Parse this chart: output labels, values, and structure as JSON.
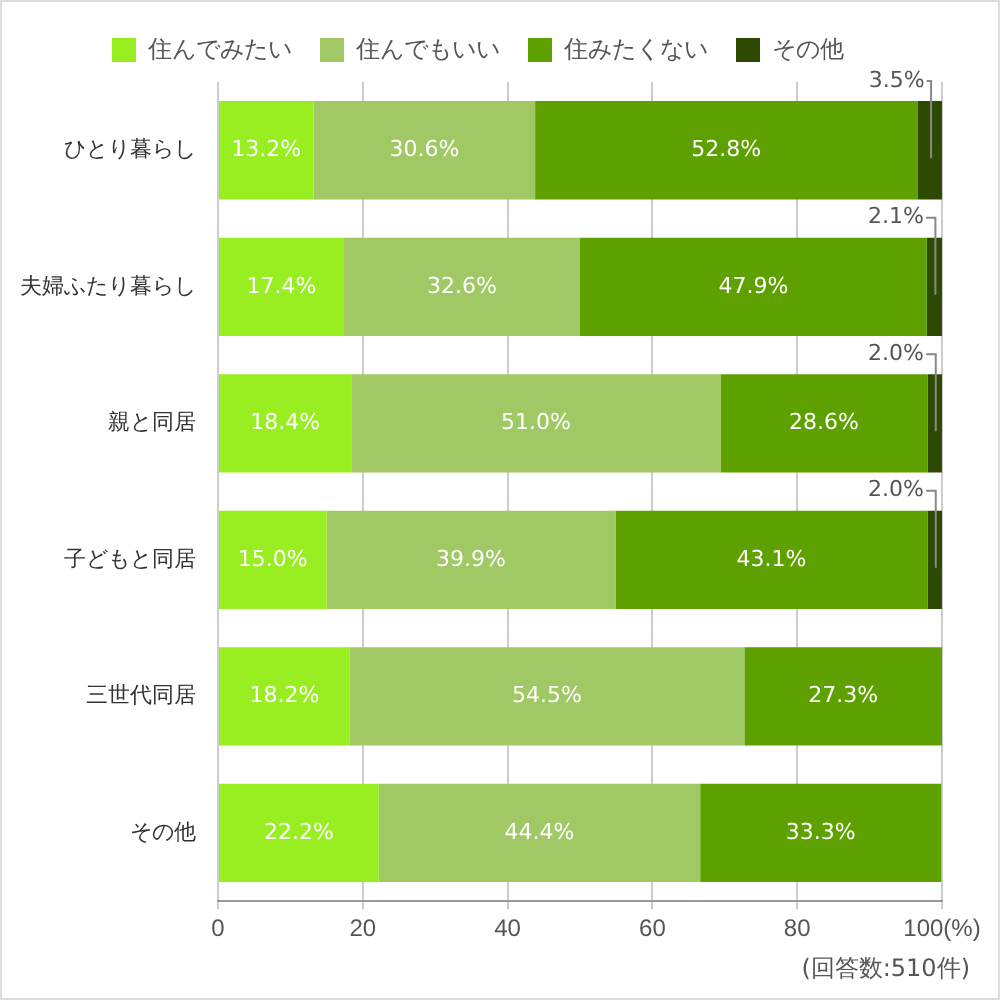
{
  "chart_data": {
    "type": "bar",
    "orientation": "horizontal",
    "stacked": true,
    "categories": [
      "ひとり暮らし",
      "夫婦ふたり暮らし",
      "親と同居",
      "子どもと同居",
      "三世代同居",
      "その他"
    ],
    "series": [
      {
        "name": "住んでみたい",
        "color": "#99ee22",
        "values": [
          13.2,
          17.4,
          18.4,
          15.0,
          18.2,
          22.2
        ],
        "value_labels": [
          "13.2%",
          "17.4%",
          "18.4%",
          "15.0%",
          "18.2%",
          "22.2%"
        ]
      },
      {
        "name": "住んでもいい",
        "color": "#a0c864",
        "values": [
          30.6,
          32.6,
          51.0,
          39.9,
          54.5,
          44.4
        ],
        "value_labels": [
          "30.6%",
          "32.6%",
          "51.0%",
          "39.9%",
          "54.5%",
          "44.4%"
        ]
      },
      {
        "name": "住みたくない",
        "color": "#5ea000",
        "values": [
          52.8,
          47.9,
          28.6,
          43.1,
          27.3,
          33.3
        ],
        "value_labels": [
          "52.8%",
          "47.9%",
          "28.6%",
          "43.1%",
          "27.3%",
          "33.3%"
        ]
      },
      {
        "name": "その他",
        "color": "#2d4a00",
        "values": [
          3.5,
          2.1,
          2.0,
          2.0,
          null,
          null
        ],
        "value_labels": [
          "3.5%",
          "2.1%",
          "2.0%",
          "2.0%",
          null,
          null
        ]
      }
    ],
    "xlim": [
      0,
      100
    ],
    "xticks": [
      0,
      20,
      40,
      60,
      80,
      {
        "value": 100,
        "label": "100(%)"
      }
    ],
    "grid": "x",
    "legend": "top",
    "annotations": [
      "(回答数:510件)"
    ]
  }
}
